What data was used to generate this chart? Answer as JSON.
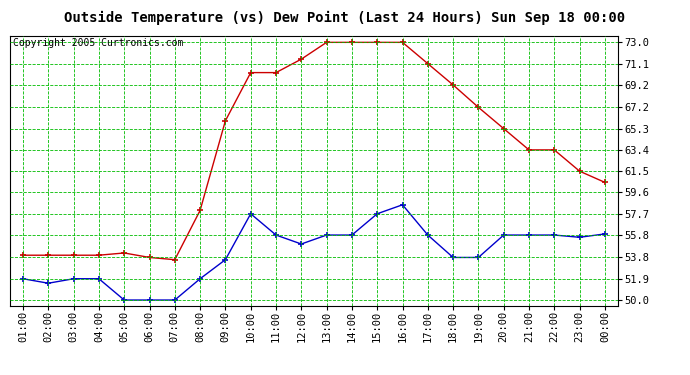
{
  "title": "Outside Temperature (vs) Dew Point (Last 24 Hours) Sun Sep 18 00:00",
  "copyright": "Copyright 2005 Curtronics.com",
  "x_labels": [
    "01:00",
    "02:00",
    "03:00",
    "04:00",
    "05:00",
    "06:00",
    "07:00",
    "08:00",
    "09:00",
    "10:00",
    "11:00",
    "12:00",
    "13:00",
    "14:00",
    "15:00",
    "16:00",
    "17:00",
    "18:00",
    "19:00",
    "20:00",
    "21:00",
    "22:00",
    "23:00",
    "00:00"
  ],
  "y_ticks": [
    50.0,
    51.9,
    53.8,
    55.8,
    57.7,
    59.6,
    61.5,
    63.4,
    65.3,
    67.2,
    69.2,
    71.1,
    73.0
  ],
  "ylim": [
    49.5,
    73.6
  ],
  "red_data": [
    54.0,
    54.0,
    54.0,
    54.0,
    54.2,
    53.8,
    53.6,
    58.0,
    66.0,
    70.3,
    70.3,
    71.5,
    73.0,
    73.0,
    73.0,
    73.0,
    71.1,
    69.2,
    67.2,
    65.3,
    63.4,
    63.4,
    61.5,
    60.5
  ],
  "blue_data": [
    51.9,
    51.5,
    51.9,
    51.9,
    50.0,
    50.0,
    50.0,
    51.9,
    53.6,
    57.7,
    55.8,
    55.0,
    55.8,
    55.8,
    57.7,
    58.5,
    55.8,
    53.8,
    53.8,
    55.8,
    55.8,
    55.8,
    55.6,
    55.9
  ],
  "red_color": "#cc0000",
  "blue_color": "#0000cc",
  "bg_color": "#ffffff",
  "grid_color": "#00bb00",
  "title_fontsize": 10,
  "copyright_fontsize": 7,
  "tick_fontsize": 7.5,
  "marker_size": 4
}
